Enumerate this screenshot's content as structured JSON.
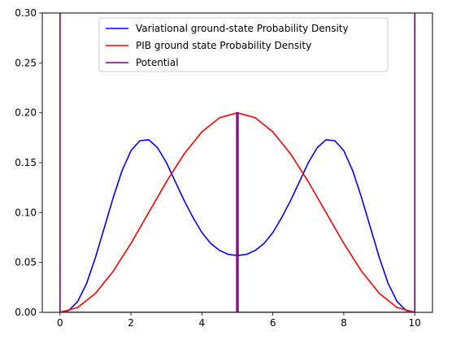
{
  "chart_data": {
    "type": "line",
    "title": "",
    "xlabel": "",
    "ylabel": "",
    "xlim": [
      -0.5,
      10.5
    ],
    "ylim": [
      0,
      0.3
    ],
    "x_ticks": [
      0,
      2,
      4,
      6,
      8,
      10
    ],
    "x_tick_labels": [
      "0",
      "2",
      "4",
      "6",
      "8",
      "10"
    ],
    "y_ticks": [
      0,
      0.05,
      0.1,
      0.15,
      0.2,
      0.25,
      0.3
    ],
    "y_tick_labels": [
      "0.00",
      "0.05",
      "0.10",
      "0.15",
      "0.20",
      "0.25",
      "0.30"
    ],
    "grid": false,
    "legend_position": "upper-center",
    "series": [
      {
        "name": "Variational ground-state Probability Density",
        "color": "#0000ff",
        "x": [
          0,
          0.25,
          0.5,
          0.75,
          1,
          1.25,
          1.5,
          1.75,
          2,
          2.25,
          2.5,
          2.75,
          3,
          3.25,
          3.5,
          3.75,
          4,
          4.25,
          4.5,
          4.75,
          5,
          5.25,
          5.5,
          5.75,
          6,
          6.25,
          6.5,
          6.75,
          7,
          7.25,
          7.5,
          7.75,
          8,
          8.25,
          8.5,
          8.75,
          9,
          9.25,
          9.5,
          9.75,
          10
        ],
        "y": [
          0,
          0.002,
          0.011,
          0.029,
          0.055,
          0.085,
          0.115,
          0.142,
          0.162,
          0.172,
          0.173,
          0.165,
          0.15,
          0.131,
          0.112,
          0.095,
          0.08,
          0.069,
          0.062,
          0.058,
          0.057,
          0.058,
          0.062,
          0.069,
          0.08,
          0.095,
          0.112,
          0.131,
          0.15,
          0.165,
          0.173,
          0.172,
          0.162,
          0.142,
          0.115,
          0.085,
          0.055,
          0.029,
          0.011,
          0.002,
          0
        ]
      },
      {
        "name": "PIB ground state Probability Density",
        "color": "#ff0000",
        "x": [
          0,
          0.5,
          1,
          1.5,
          2,
          2.5,
          3,
          3.5,
          4,
          4.5,
          5,
          5.5,
          6,
          6.5,
          7,
          7.5,
          8,
          8.5,
          9,
          9.5,
          10
        ],
        "y": [
          0,
          0.0049,
          0.0191,
          0.0412,
          0.0691,
          0.1,
          0.1309,
          0.1588,
          0.1809,
          0.1951,
          0.2,
          0.1951,
          0.1809,
          0.1588,
          0.1309,
          0.1,
          0.0691,
          0.0412,
          0.0191,
          0.0049,
          0
        ]
      },
      {
        "name": "Potential",
        "color": "#800080",
        "x": [
          0,
          0,
          0,
          4.98,
          4.98,
          5.02,
          5.02,
          10,
          10,
          10
        ],
        "y": [
          0.3,
          0,
          0,
          0,
          0.2,
          0.2,
          0,
          0,
          0,
          0.3
        ]
      }
    ]
  }
}
